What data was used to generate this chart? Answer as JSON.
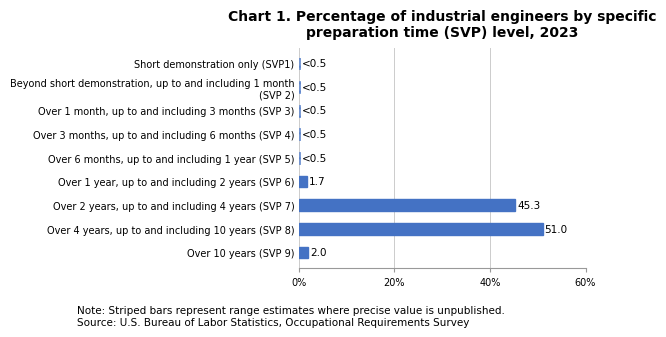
{
  "title": "Chart 1. Percentage of industrial engineers by specific\npreparation time (SVP) level, 2023",
  "categories": [
    "Short demonstration only (SVP1)",
    "Beyond short demonstration, up to and including 1 month\n(SVP 2)",
    "Over 1 month, up to and including 3 months (SVP 3)",
    "Over 3 months, up to and including 6 months (SVP 4)",
    "Over 6 months, up to and including 1 year (SVP 5)",
    "Over 1 year, up to and including 2 years (SVP 6)",
    "Over 2 years, up to and including 4 years (SVP 7)",
    "Over 4 years, up to and including 10 years (SVP 8)",
    "Over 10 years (SVP 9)"
  ],
  "values": [
    0.25,
    0.25,
    0.25,
    0.25,
    0.25,
    1.7,
    45.3,
    51.0,
    2.0
  ],
  "labels": [
    "<0.5",
    "<0.5",
    "<0.5",
    "<0.5",
    "<0.5",
    "1.7",
    "45.3",
    "51.0",
    "2.0"
  ],
  "striped": [
    true,
    true,
    true,
    true,
    true,
    false,
    false,
    false,
    false
  ],
  "bar_color": "#4472C4",
  "xlim": [
    0,
    60
  ],
  "xticks": [
    0,
    20,
    40,
    60
  ],
  "xticklabels": [
    "0%",
    "20%",
    "40%",
    "60%"
  ],
  "note": "Note: Striped bars represent range estimates where precise value is unpublished.\nSource: U.S. Bureau of Labor Statistics, Occupational Requirements Survey",
  "title_fontsize": 10,
  "label_fontsize": 7.5,
  "tick_fontsize": 7.0,
  "note_fontsize": 7.5
}
